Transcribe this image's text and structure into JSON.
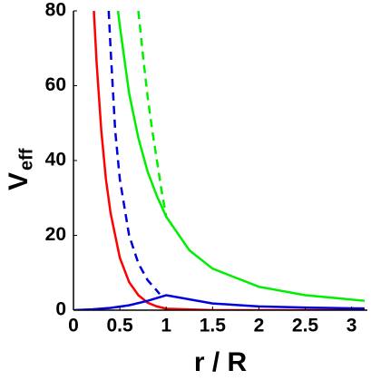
{
  "chart_data": {
    "type": "line",
    "x_label": "r / R",
    "y_label": "V",
    "y_label_sub": "eff",
    "xlim": [
      0,
      3.17
    ],
    "ylim": [
      0,
      80
    ],
    "xticks": [
      0,
      0.5,
      1,
      1.5,
      2,
      2.5,
      3
    ],
    "yticks": [
      0,
      20,
      40,
      60,
      80
    ],
    "series": [
      {
        "color": "#ff0000",
        "dashed": false,
        "x": [
          0.22,
          0.25,
          0.3,
          0.35,
          0.4,
          0.5,
          0.6,
          0.7,
          0.8,
          0.9,
          1,
          1.5,
          2,
          2.5,
          3.14
        ],
        "values": [
          80,
          66,
          48,
          35,
          26,
          14,
          7.5,
          4,
          2,
          1,
          0.4,
          0,
          0,
          0,
          0
        ]
      },
      {
        "color": "#0000dd",
        "dashed": true,
        "x": [
          0.38,
          0.4,
          0.45,
          0.5,
          0.6,
          0.7,
          0.8,
          0.9,
          0.93
        ],
        "values": [
          80,
          70,
          48,
          35,
          20,
          12.5,
          8,
          5.2,
          4.3
        ]
      },
      {
        "color": "#0000dd",
        "dashed": false,
        "x": [
          0,
          0.2,
          0.4,
          0.6,
          0.8,
          1,
          1.5,
          2,
          2.5,
          3.14
        ],
        "values": [
          0,
          0.2,
          0.6,
          1.3,
          2.5,
          4,
          1.8,
          1.0,
          0.7,
          0.45
        ]
      },
      {
        "color": "#00ee00",
        "dashed": false,
        "x": [
          0.48,
          0.5,
          0.6,
          0.7,
          0.8,
          0.9,
          1,
          1.25,
          1.5,
          2,
          2.5,
          3.14
        ],
        "values": [
          80,
          76,
          58,
          46,
          37,
          30.5,
          25,
          16,
          11.1,
          6.25,
          4,
          2.5
        ]
      },
      {
        "color": "#00ee00",
        "dashed": true,
        "x": [
          0.7,
          0.75,
          0.8,
          0.85,
          0.9,
          0.95,
          1
        ],
        "values": [
          80,
          68,
          57,
          48,
          40,
          32,
          25
        ]
      }
    ]
  }
}
